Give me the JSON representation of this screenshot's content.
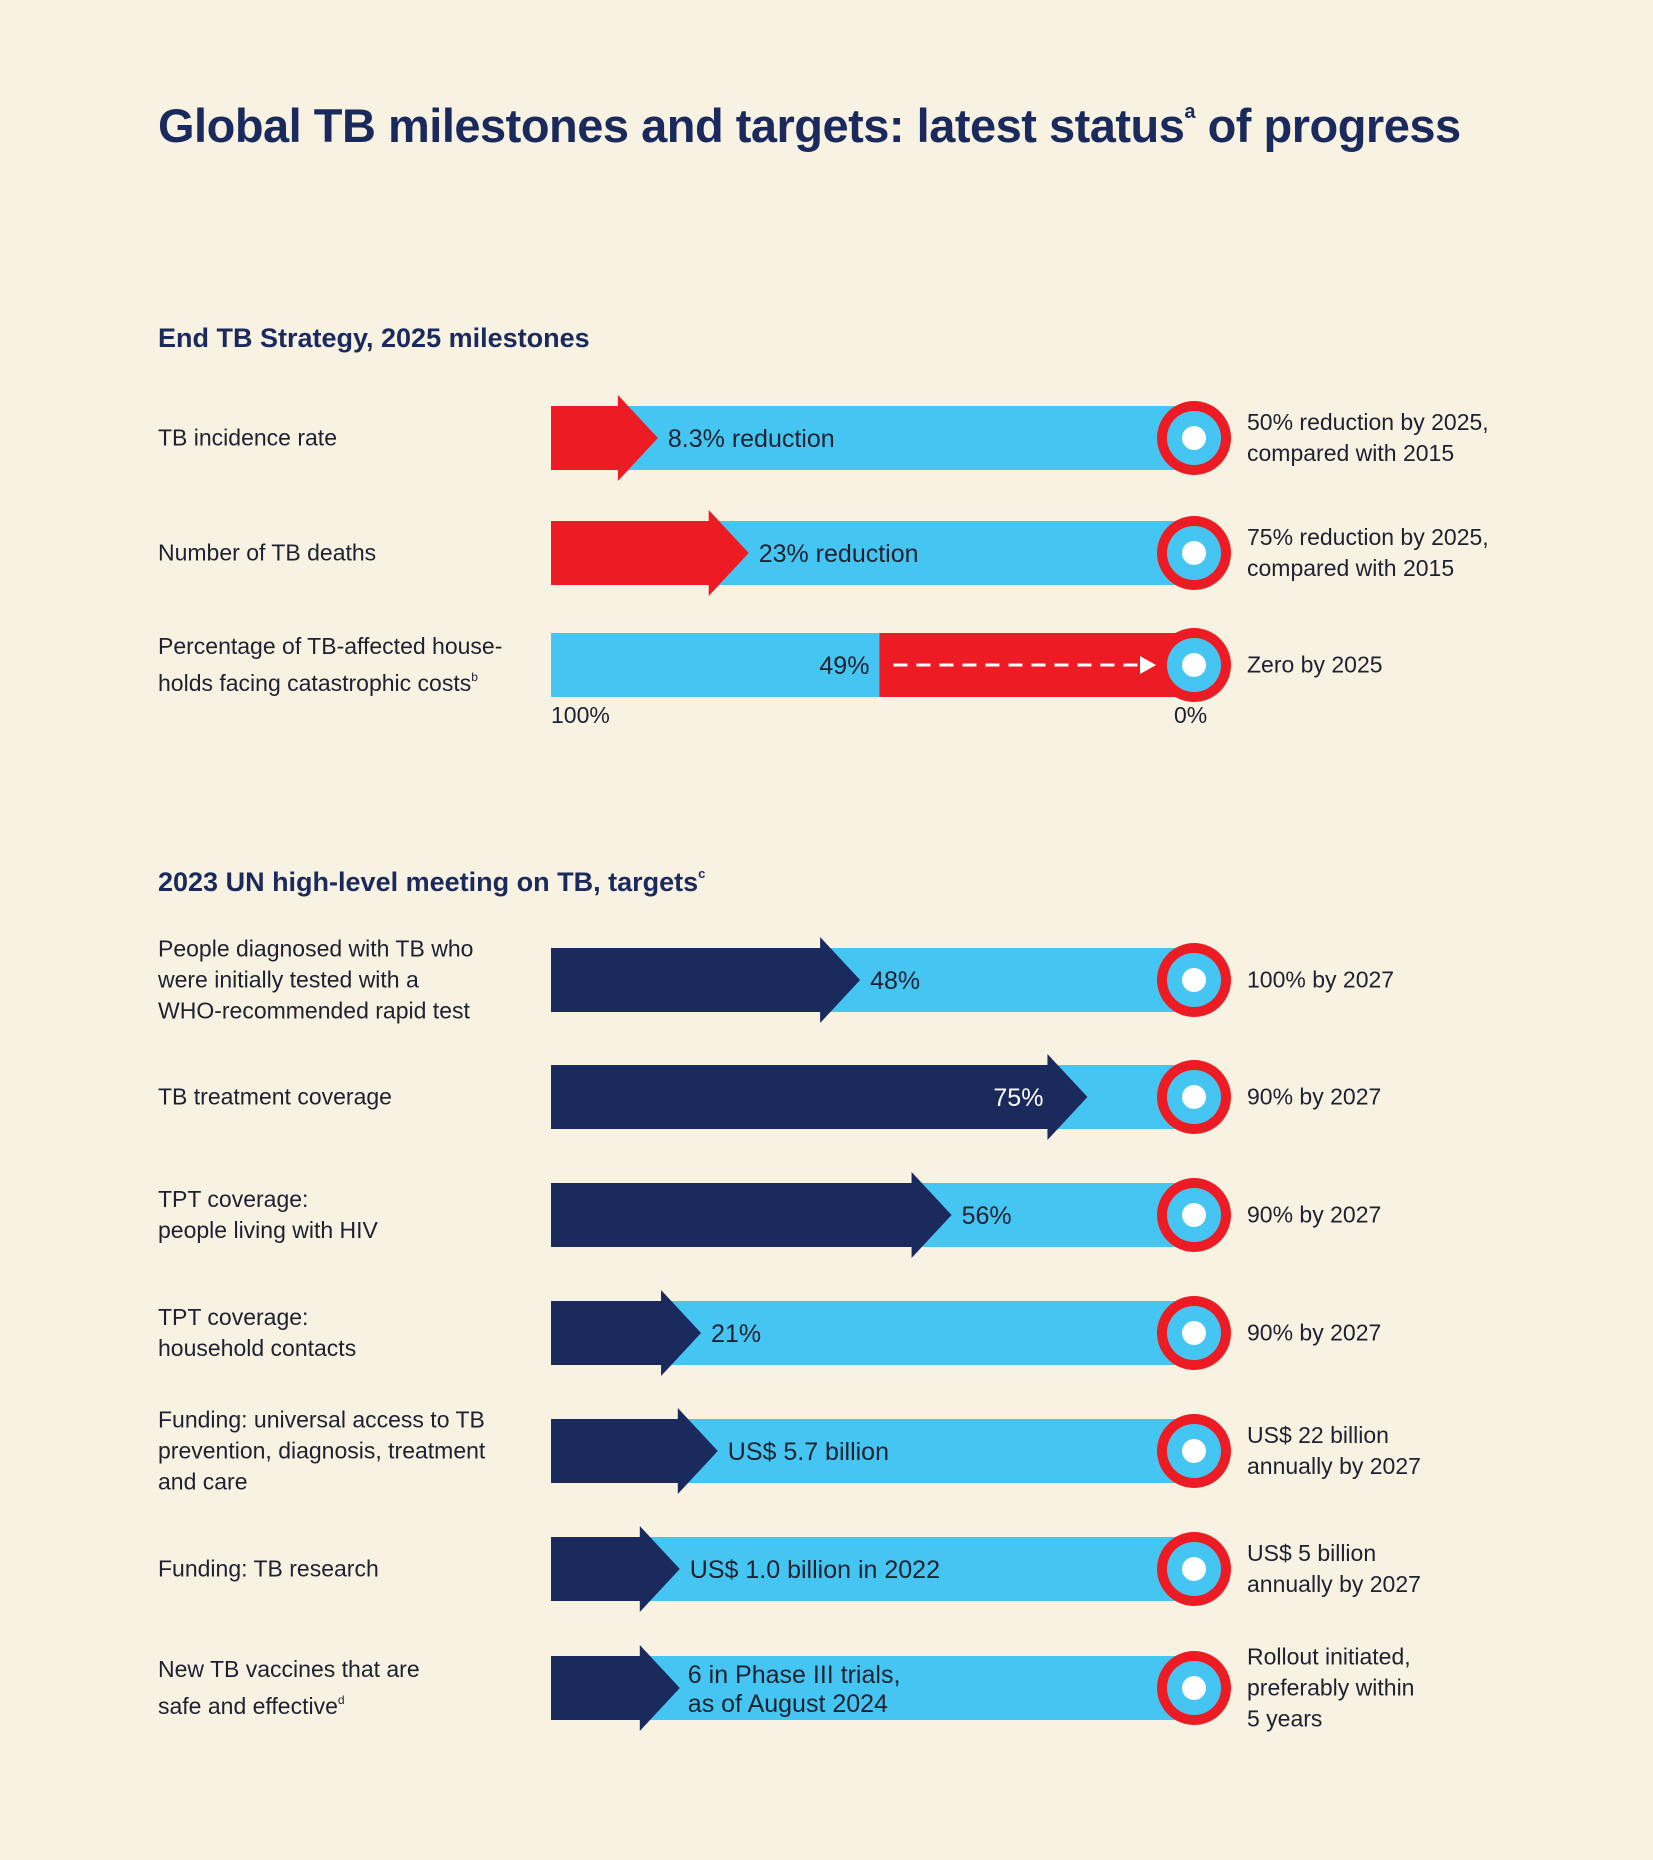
{
  "title": "Global TB milestones and targets: latest status",
  "title_sup": "a",
  "title_suffix": " of progress",
  "colors": {
    "background": "#f8f2e3",
    "light_blue": "#45c6f2",
    "red": "#ed1c24",
    "navy": "#1b2a5c",
    "white": "#ffffff"
  },
  "sections": [
    {
      "title": "End TB Strategy, 2025 milestones",
      "sup": ""
    },
    {
      "title": "2023 UN high-level meeting on TB, targets",
      "sup": "c"
    }
  ],
  "axis": {
    "left": "100%",
    "right": "0%"
  },
  "chart_data": {
    "type": "bar",
    "title": "Global TB milestones and targets: latest status of progress",
    "rows": [
      {
        "section": 0,
        "label": "TB incidence rate",
        "label_sup": "",
        "progress_fraction": 0.166,
        "bar_color": "red",
        "value_text": "8.3% reduction",
        "target_text": "50% reduction by 2025, compared with 2015"
      },
      {
        "section": 0,
        "label": "Number of TB deaths",
        "label_sup": "",
        "progress_fraction": 0.307,
        "bar_color": "red",
        "value_text": "23% reduction",
        "target_text": "75% reduction by 2025, compared with 2015"
      },
      {
        "section": 0,
        "label": "Percentage of TB-affected households facing catastrophic costs",
        "label_display": [
          "Percentage of TB-affected house-",
          "holds facing catastrophic costs"
        ],
        "label_sup": "b",
        "progress_fraction": 0.51,
        "reverse_scale": true,
        "value_text": "49%",
        "target_text": "Zero by 2025"
      },
      {
        "section": 1,
        "label": "People diagnosed with TB who were initially tested with a WHO-recommended rapid test",
        "label_display": [
          "People diagnosed with TB who",
          "were initially tested with a",
          "WHO-recommended rapid test"
        ],
        "label_sup": "",
        "progress_fraction": 0.48,
        "bar_color": "navy",
        "value_text": "48%",
        "target_text": "100% by 2027"
      },
      {
        "section": 1,
        "label": "TB treatment coverage",
        "label_sup": "",
        "progress_fraction": 0.833,
        "bar_color": "navy",
        "value_text": "75%",
        "value_inside": true,
        "target_text": "90% by 2027"
      },
      {
        "section": 1,
        "label": "TPT coverage: people living with HIV",
        "label_display": [
          "TPT coverage:",
          "people living with HIV"
        ],
        "label_sup": "",
        "progress_fraction": 0.622,
        "bar_color": "navy",
        "value_text": "56%",
        "target_text": "90% by 2027"
      },
      {
        "section": 1,
        "label": "TPT coverage: household contacts",
        "label_display": [
          "TPT coverage:",
          "household contacts"
        ],
        "label_sup": "",
        "progress_fraction": 0.233,
        "bar_color": "navy",
        "value_text": "21%",
        "target_text": "90% by 2027"
      },
      {
        "section": 1,
        "label": "Funding: universal access to TB prevention, diagnosis, treatment and care",
        "label_display": [
          "Funding: universal access to TB",
          "prevention, diagnosis, treatment",
          "and care"
        ],
        "label_sup": "",
        "progress_fraction": 0.259,
        "bar_color": "navy",
        "value_text": "US$ 5.7 billion",
        "target_text": "US$ 22 billion annually by 2027"
      },
      {
        "section": 1,
        "label": "Funding: TB research",
        "label_sup": "",
        "progress_fraction": 0.2,
        "bar_color": "navy",
        "value_text": "US$ 1.0 billion in 2022",
        "target_text": "US$ 5 billion annually by 2027"
      },
      {
        "section": 1,
        "label": "New TB vaccines that are safe and effective",
        "label_display": [
          "New TB vaccines that are",
          "safe and effective"
        ],
        "label_sup": "d",
        "progress_fraction": 0.2,
        "bar_color": "navy",
        "value_text": "6 in Phase III trials, as of August 2024",
        "value_display": [
          "6 in Phase III trials,",
          "as of August 2024"
        ],
        "target_text": "Rollout initiated, preferably within 5 years",
        "target_display": [
          "Rollout initiated,",
          "preferably within",
          "5 years"
        ]
      }
    ]
  }
}
